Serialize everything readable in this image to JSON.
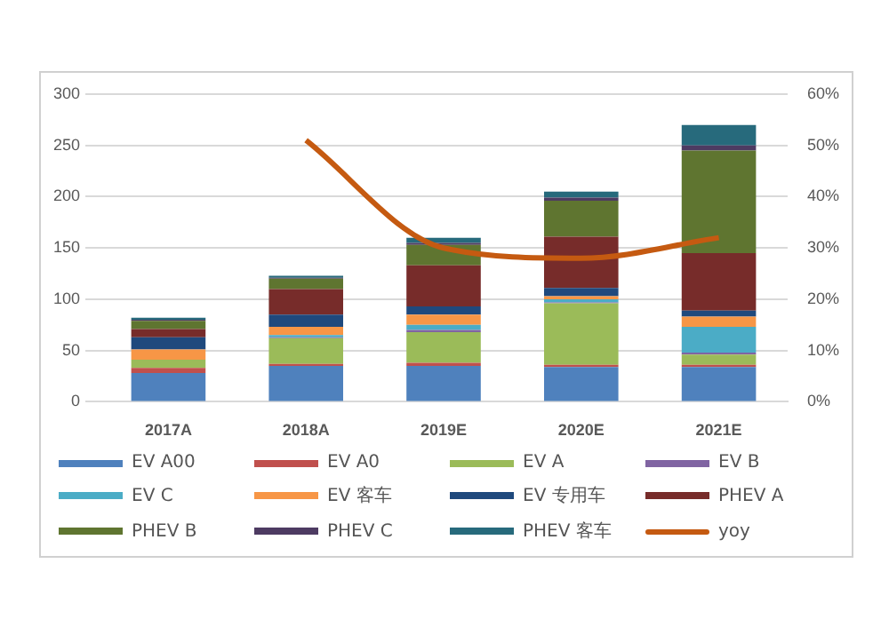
{
  "chart_data": {
    "type": "bar",
    "stacked": true,
    "categories": [
      "2017A",
      "2018A",
      "2019E",
      "2020E",
      "2021E"
    ],
    "series": [
      {
        "name": "EV A00",
        "color": "#4f81bd",
        "values": [
          28,
          35,
          35,
          34,
          34
        ]
      },
      {
        "name": "EV A0",
        "color": "#c0504d",
        "values": [
          5,
          2,
          3,
          2,
          2
        ]
      },
      {
        "name": "EV A",
        "color": "#9bbb59",
        "values": [
          8,
          25,
          30,
          60,
          10
        ]
      },
      {
        "name": "EV B",
        "color": "#8064a2",
        "values": [
          0,
          1,
          2,
          1,
          2
        ]
      },
      {
        "name": "EV C",
        "color": "#4bacc6",
        "values": [
          0,
          2,
          5,
          3,
          25
        ]
      },
      {
        "name": "EV 客车",
        "color": "#f79646",
        "values": [
          10,
          8,
          10,
          3,
          10
        ]
      },
      {
        "name": "EV 专用车",
        "color": "#1f497d",
        "values": [
          12,
          12,
          8,
          8,
          6
        ]
      },
      {
        "name": "PHEV A",
        "color": "#772c2a",
        "values": [
          8,
          25,
          40,
          50,
          56
        ]
      },
      {
        "name": "PHEV B",
        "color": "#5f7530",
        "values": [
          8,
          10,
          20,
          35,
          100
        ]
      },
      {
        "name": "PHEV C",
        "color": "#4d3b62",
        "values": [
          1,
          1,
          2,
          3,
          5
        ]
      },
      {
        "name": "PHEV 客车",
        "color": "#276a7c",
        "values": [
          2,
          2,
          5,
          6,
          20
        ]
      },
      {
        "name": "yoy",
        "type": "line",
        "axis": "y2",
        "color": "#c55a11",
        "values": [
          null,
          51,
          30,
          28,
          32
        ]
      }
    ],
    "ylim": [
      0,
      300
    ],
    "yticks": [
      0,
      50,
      100,
      150,
      200,
      250,
      300
    ],
    "y2lim": [
      0,
      60
    ],
    "y2ticks": [
      {
        "value": 0,
        "label": "0%"
      },
      {
        "value": 10,
        "label": "10%"
      },
      {
        "value": 20,
        "label": "20%"
      },
      {
        "value": 30,
        "label": "30%"
      },
      {
        "value": 40,
        "label": "40%"
      },
      {
        "value": 50,
        "label": "50%"
      },
      {
        "value": 60,
        "label": "60%"
      }
    ],
    "grid": "y",
    "legend": "bottom"
  }
}
